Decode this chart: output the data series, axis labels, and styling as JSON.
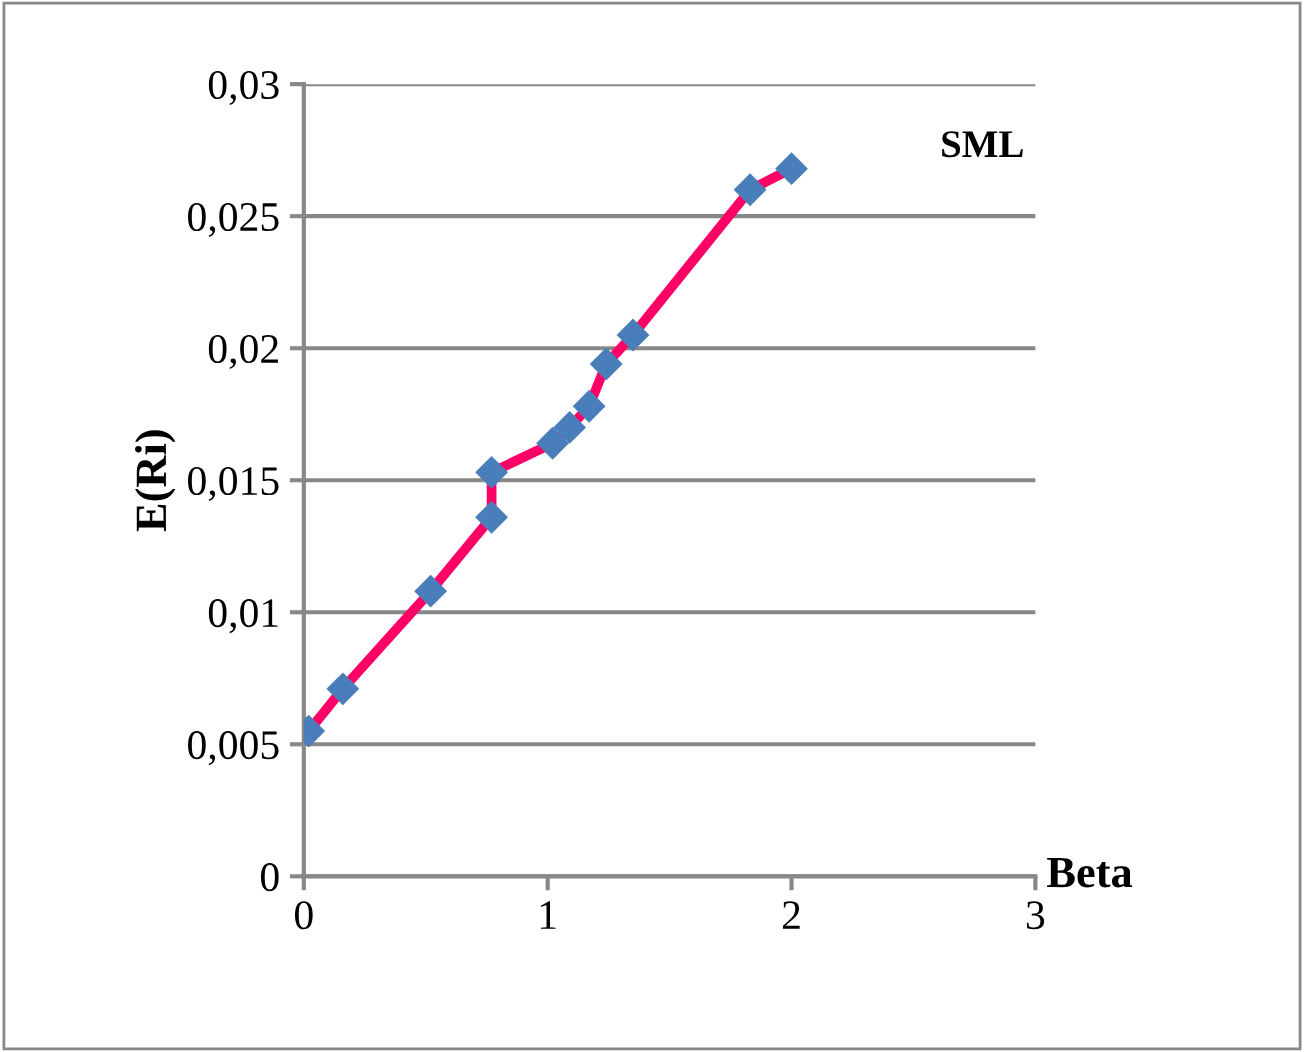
{
  "chart_data": {
    "type": "line",
    "xlabel": "Beta",
    "ylabel": "E(Ri)",
    "x": [
      0.02,
      0.16,
      0.52,
      0.77,
      0.77,
      1.02,
      1.09,
      1.17,
      1.24,
      1.35,
      1.83,
      2.0
    ],
    "series": [
      {
        "name": "SML",
        "color": "#ff0066",
        "colors": [
          "#4a7ebb",
          "#4a7ebb",
          "#4a7ebb",
          "#4a7ebb",
          "#4a7ebb",
          "#4a7ebb",
          "#4a7ebb",
          "#4a7ebb",
          "#4a7ebb",
          "#4a7ebb",
          "#4a7ebb",
          "#4a7ebb"
        ],
        "values": [
          0.0055,
          0.0071,
          0.0108,
          0.0136,
          0.0153,
          0.0164,
          0.017,
          0.0178,
          0.0194,
          0.0205,
          0.026,
          0.0268
        ]
      }
    ],
    "xlim": [
      0,
      3
    ],
    "xticks": [
      0,
      1,
      2,
      3
    ],
    "ylim": [
      0,
      0.03
    ],
    "yticks": [
      0,
      {
        "value": 0.005,
        "label": "0,005"
      },
      {
        "value": 0.01,
        "label": "0,01"
      },
      {
        "value": 0.015,
        "label": "0,015"
      },
      {
        "value": 0.02,
        "label": "0,02"
      },
      {
        "value": 0.025,
        "label": "0,025"
      },
      {
        "value": 0.03,
        "label": "0,03"
      }
    ],
    "grid": "y",
    "marker": "diamond",
    "line_style": "solid",
    "legend": false
  }
}
